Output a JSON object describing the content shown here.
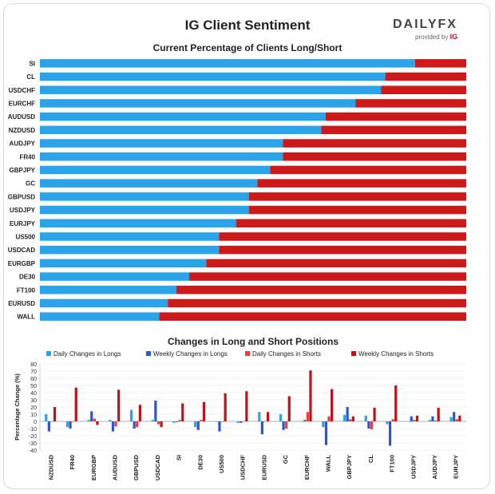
{
  "header": {
    "title": "IG Client Sentiment",
    "logo_main": "DAILYFX",
    "logo_sub": "provided by",
    "logo_brand": "IG"
  },
  "colors": {
    "long": "#2aa3e8",
    "short": "#cc1a1a",
    "daily_long": "#2aa3e8",
    "weekly_long": "#2d56c7",
    "daily_short": "#ef3b3b",
    "weekly_short": "#c0101a"
  },
  "chart_data": [
    {
      "type": "bar",
      "orientation": "horizontal-stacked",
      "title": "Current Percentage of Clients Long/Short",
      "categories": [
        "SI",
        "CL",
        "USDCHF",
        "EURCHF",
        "AUDUSD",
        "NZDUSD",
        "AUDJPY",
        "FR40",
        "GBPJPY",
        "GC",
        "GBPUSD",
        "USDJPY",
        "EURJPY",
        "US500",
        "USDCAD",
        "EURGBP",
        "DE30",
        "FT100",
        "EURUSD",
        "WALL"
      ],
      "series": [
        {
          "name": "Long",
          "values": [
            88,
            81,
            80,
            74,
            67,
            66,
            57,
            57,
            54,
            51,
            49,
            49,
            46,
            42,
            42,
            39,
            35,
            32,
            30,
            28
          ]
        },
        {
          "name": "Short",
          "values": [
            12,
            19,
            20,
            26,
            33,
            34,
            43,
            43,
            46,
            49,
            51,
            51,
            54,
            58,
            58,
            61,
            65,
            68,
            70,
            72
          ]
        }
      ],
      "xlim": [
        0,
        100
      ]
    },
    {
      "type": "bar",
      "title": "Changes in Long and Short Positions",
      "ylabel": "Percentage Change (%)",
      "ylim": [
        -40,
        80
      ],
      "yticks": [
        80,
        70,
        60,
        50,
        40,
        30,
        20,
        10,
        0,
        -10,
        -20,
        -30,
        -40
      ],
      "legend_position": "top",
      "categories": [
        "NZDUSD",
        "FR40",
        "EURGBP",
        "AUDUSD",
        "GBPUSD",
        "USDCAD",
        "SI",
        "DE30",
        "US500",
        "USDCHF",
        "EURUSD",
        "GC",
        "EURCHF",
        "WALL",
        "GBPJPY",
        "CL",
        "FT100",
        "USDJPY",
        "AUDJPY",
        "EURJPY"
      ],
      "series": [
        {
          "name": "Daily Changes in Longs",
          "values": [
            10,
            -8,
            2,
            2,
            16,
            2,
            -2,
            -8,
            0,
            -2,
            13,
            10,
            0,
            -8,
            9,
            8,
            -4,
            0,
            2,
            6
          ]
        },
        {
          "name": "Weekly Changes in Longs",
          "values": [
            -14,
            -10,
            14,
            -14,
            -10,
            29,
            -1,
            -12,
            -14,
            -2,
            -18,
            -12,
            2,
            -33,
            20,
            -10,
            -34,
            7,
            7,
            13
          ]
        },
        {
          "name": "Daily Changes in Shorts",
          "values": [
            0,
            0,
            4,
            -7,
            -8,
            -4,
            2,
            2,
            0,
            0,
            0,
            -10,
            13,
            7,
            3,
            -11,
            3,
            2,
            1,
            3
          ]
        },
        {
          "name": "Weekly Changes in Shorts",
          "values": [
            20,
            47,
            -5,
            44,
            23,
            -8,
            25,
            27,
            39,
            42,
            13,
            35,
            71,
            45,
            7,
            19,
            50,
            8,
            19,
            8
          ]
        }
      ]
    }
  ]
}
